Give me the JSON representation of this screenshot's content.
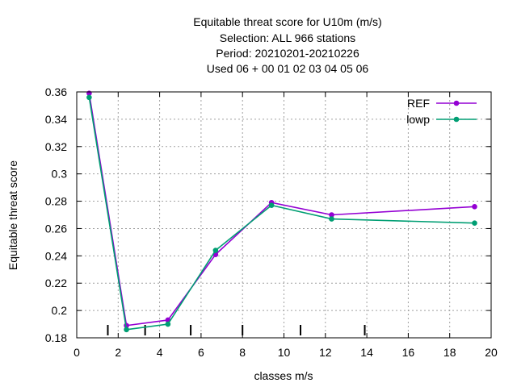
{
  "chart_data": {
    "type": "line",
    "title_lines": [
      "Equitable threat score  for U10m (m/s)",
      "Selection: ALL    966 stations",
      "Period: 20210201-20210226",
      "Used  06  + 00 01 02 03 04 05 06"
    ],
    "xlabel": "classes m/s",
    "ylabel": "Equitable threat score",
    "xlim": [
      0,
      20
    ],
    "ylim": [
      0.18,
      0.36
    ],
    "xticks": [
      0,
      2,
      4,
      6,
      8,
      10,
      12,
      14,
      16,
      18,
      20
    ],
    "yticks": [
      0.18,
      0.2,
      0.22,
      0.24,
      0.26,
      0.28,
      0.3,
      0.32,
      0.34,
      0.36
    ],
    "ytick_labels": [
      "0.18",
      "0.2",
      "0.22",
      "0.24",
      "0.26",
      "0.28",
      "0.3",
      "0.32",
      "0.34",
      "0.36"
    ],
    "grid": true,
    "legend_position": "top-right",
    "class_boundaries": [
      1.5,
      3.3,
      5.5,
      8,
      10.8,
      13.9
    ],
    "series": [
      {
        "name": "REF",
        "color": "#9400d3",
        "x": [
          0.6,
          2.4,
          4.4,
          6.7,
          9.4,
          12.3,
          19.2
        ],
        "y": [
          0.359,
          0.189,
          0.193,
          0.241,
          0.279,
          0.27,
          0.276
        ]
      },
      {
        "name": "lowp",
        "color": "#009e73",
        "x": [
          0.6,
          2.4,
          4.4,
          6.7,
          9.4,
          12.3,
          19.2
        ],
        "y": [
          0.356,
          0.186,
          0.19,
          0.244,
          0.277,
          0.267,
          0.264
        ]
      }
    ]
  }
}
